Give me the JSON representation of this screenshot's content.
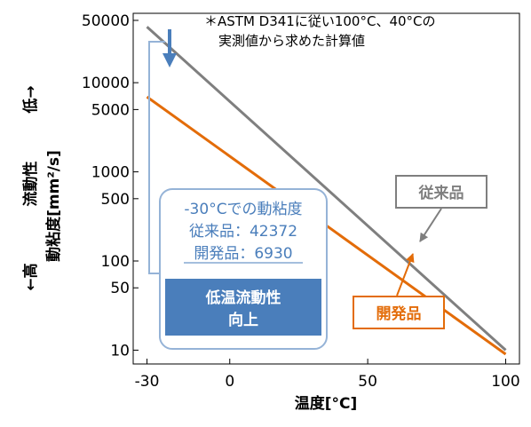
{
  "chart_data": {
    "type": "line",
    "xlabel": "温度[°C]",
    "ylabel": "動粘度[mm²/s]",
    "x_ticks": [
      "-30",
      "0",
      "50",
      "100"
    ],
    "y_ticks": [
      "50000",
      "10000",
      "5000",
      "1000",
      "500",
      "100",
      "50",
      "10"
    ],
    "xlim": [
      -35,
      105
    ],
    "ylim": [
      7,
      60000
    ],
    "y_scale": "log",
    "grid": false,
    "series": [
      {
        "name": "従来品",
        "x": [
          -30,
          100
        ],
        "y": [
          42372,
          10
        ],
        "color": "#7f7f7f"
      },
      {
        "name": "開発品",
        "x": [
          -30,
          100
        ],
        "y": [
          6930,
          9
        ],
        "color": "#e36c09"
      }
    ],
    "side_label": {
      "high": "←高",
      "property": "流動性",
      "low": "低→"
    },
    "note": {
      "line1": "＊ASTM D341に従い100°C、40°Cの",
      "line2": "実測値から求めた計算値"
    },
    "callout": {
      "title": "-30°Cでの動粘度",
      "line1": "従来品：42372",
      "line2": "開発品：6930",
      "banner_line1": "低温流動性",
      "banner_line2": "向上"
    },
    "colors": {
      "conventional": "#7f7f7f",
      "developed": "#e36c09",
      "accent": "#4a7ebb",
      "callout_border": "#95b3d7",
      "banner_bg": "#4a7ebb"
    }
  }
}
